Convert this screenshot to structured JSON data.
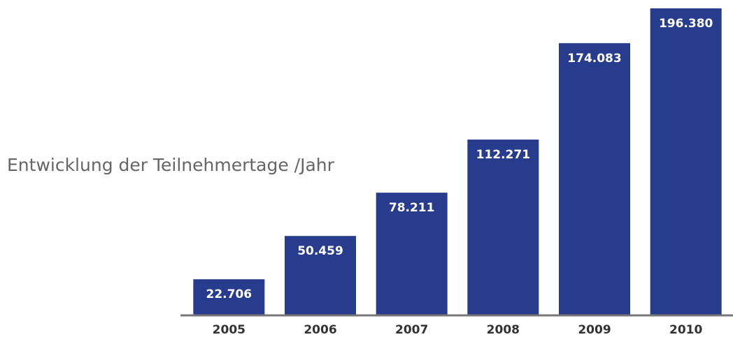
{
  "chart_data": {
    "type": "bar",
    "title": "Entwicklung der Teilnehmertage /Jahr",
    "categories": [
      "2005",
      "2006",
      "2007",
      "2008",
      "2009",
      "2010"
    ],
    "values": [
      22706,
      50459,
      78211,
      112271,
      174083,
      196380
    ],
    "value_labels": [
      "22.706",
      "50.459",
      "78.211",
      "112.271",
      "174.083",
      "196.380"
    ],
    "color": "#273c8c"
  }
}
